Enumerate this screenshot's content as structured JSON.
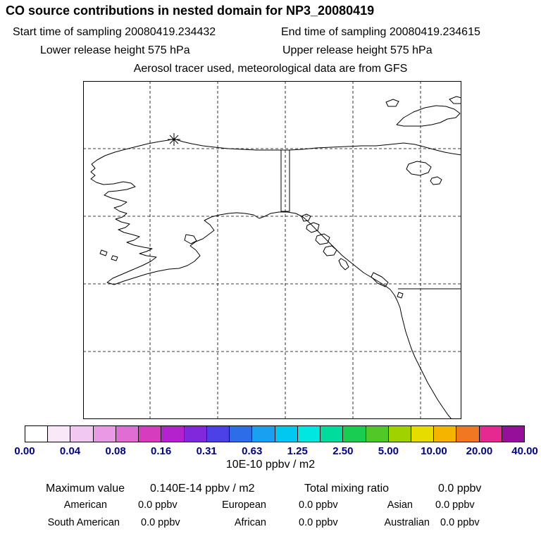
{
  "header": {
    "title": "CO  source contributions in nested domain for NP3_20080419",
    "start_time": "Start time of sampling 20080419.234432",
    "end_time": "End time of sampling 20080419.234615",
    "lower_release": "Lower release height  575 hPa",
    "upper_release": "Upper release height  575 hPa",
    "tracer_line": "Aerosol tracer used, meteorological data are from GFS"
  },
  "map": {
    "marker": "release-location-star",
    "marker_color": "#000000"
  },
  "colorbar": {
    "tick_labels": [
      "0.00",
      "0.04",
      "0.08",
      "0.16",
      "0.31",
      "0.63",
      "1.25",
      "2.50",
      "5.00",
      "10.00",
      "20.00",
      "40.00"
    ],
    "units_label": "10E-10 ppbv / m2",
    "label_color": "#00008c",
    "segment_colors": [
      "#ffffff",
      "#f8e8f8",
      "#f0c8f0",
      "#e89be4",
      "#e06ed2",
      "#d53cbe",
      "#b422cd",
      "#8228dc",
      "#4b41e6",
      "#2d6ee8",
      "#19a0f0",
      "#00c8f0",
      "#00e6e1",
      "#00dc9b",
      "#19cd50",
      "#50c828",
      "#a0d200",
      "#e6dc00",
      "#f5b400",
      "#f07823",
      "#e62891",
      "#960f9b"
    ]
  },
  "stats": {
    "maximum_label": "Maximum value",
    "maximum_value": "0.140E-14 ppbv / m2",
    "total_label": "Total mixing ratio",
    "total_value": "0.0 ppbv",
    "sources": [
      {
        "name": "American",
        "value": "0.0 ppbv"
      },
      {
        "name": "European",
        "value": "0.0 ppbv"
      },
      {
        "name": "Asian",
        "value": "0.0 ppbv"
      },
      {
        "name": "South American",
        "value": "0.0 ppbv"
      },
      {
        "name": "African",
        "value": "0.0 ppbv"
      },
      {
        "name": "Australian",
        "value": "0.0 ppbv"
      }
    ]
  },
  "chart_data": {
    "type": "heatmap",
    "title": "CO source contributions in nested domain for NP3_20080419",
    "subtitle": "Aerosol tracer used, meteorological data are from GFS",
    "start_time": "20080419.234432",
    "end_time": "20080419.234615",
    "lower_release_height_hPa": 575,
    "upper_release_height_hPa": 575,
    "colorbar_ticks": [
      0.0,
      0.04,
      0.08,
      0.16,
      0.31,
      0.63,
      1.25,
      2.5,
      5.0,
      10.0,
      20.0,
      40.0
    ],
    "colorbar_units": "10E-10 ppbv / m2",
    "maximum_value": "0.140E-14 ppbv / m2",
    "total_mixing_ratio_ppbv": 0.0,
    "source_contributions_ppbv": {
      "American": 0.0,
      "European": 0.0,
      "Asian": 0.0,
      "South American": 0.0,
      "African": 0.0,
      "Australian": 0.0
    },
    "legend_position": "bottom",
    "grid": true
  }
}
